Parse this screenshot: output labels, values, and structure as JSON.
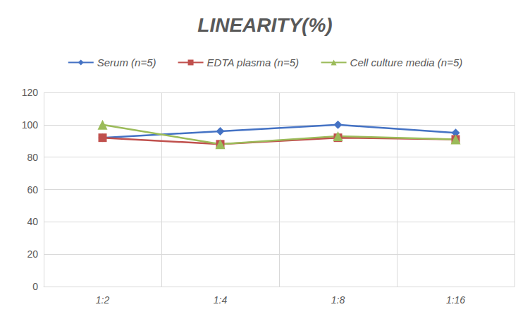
{
  "chart_data": {
    "type": "line",
    "title": "LINEARITY(%)",
    "categories": [
      "1:2",
      "1:4",
      "1:8",
      "1:16"
    ],
    "series": [
      {
        "name": "Serum (n=5)",
        "color": "#4472c4",
        "marker": "diamond",
        "values": [
          92,
          96,
          100,
          95
        ]
      },
      {
        "name": "EDTA plasma (n=5)",
        "color": "#c0504d",
        "marker": "square",
        "values": [
          92,
          88,
          92,
          91
        ]
      },
      {
        "name": "Cell culture media (n=5)",
        "color": "#9bbb59",
        "marker": "triangle",
        "values": [
          100,
          88,
          93,
          91
        ]
      }
    ],
    "ylim": [
      0,
      120
    ],
    "yticks": [
      0,
      20,
      40,
      60,
      80,
      100,
      120
    ],
    "grid": true,
    "legend": "top"
  }
}
